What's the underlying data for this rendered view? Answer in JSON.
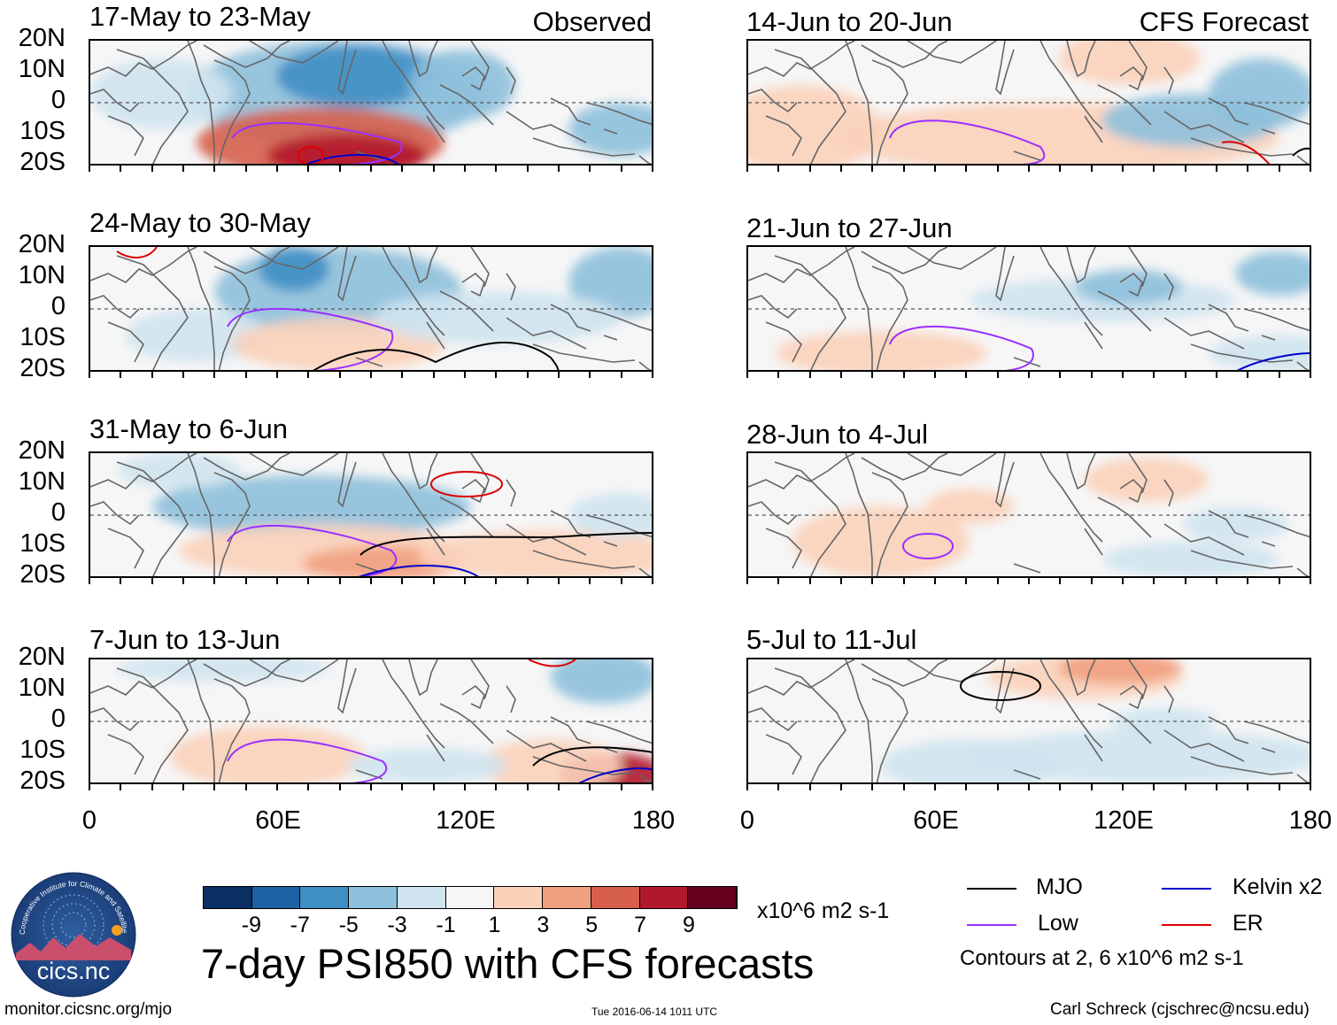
{
  "panels": [
    {
      "id": "p1",
      "title": "17-May to 23-May",
      "label": "Observed"
    },
    {
      "id": "p2",
      "title": "24-May to 30-May",
      "label": ""
    },
    {
      "id": "p3",
      "title": "31-May to 6-Jun",
      "label": ""
    },
    {
      "id": "p4",
      "title": "7-Jun to 13-Jun",
      "label": ""
    },
    {
      "id": "p5",
      "title": "14-Jun to 20-Jun",
      "label": "CFS Forecast"
    },
    {
      "id": "p6",
      "title": "21-Jun to 27-Jun",
      "label": ""
    },
    {
      "id": "p7",
      "title": "28-Jun to 4-Jul",
      "label": ""
    },
    {
      "id": "p8",
      "title": "5-Jul to 11-Jul",
      "label": ""
    }
  ],
  "lat_labels": [
    "20N",
    "10N",
    "0",
    "10S",
    "20S"
  ],
  "lon_labels": [
    "0",
    "60E",
    "120E",
    "180"
  ],
  "colorbar": {
    "ticks": [
      "-9",
      "-7",
      "-5",
      "-3",
      "-1",
      "1",
      "3",
      "5",
      "7",
      "9"
    ],
    "colors": [
      "#0b2f63",
      "#1e63a6",
      "#3f8fc4",
      "#8ec0dc",
      "#cfe4ef",
      "#f6f6f6",
      "#fbd1ba",
      "#f1a07f",
      "#d6604d",
      "#b2182b",
      "#67001f"
    ],
    "units": "x10^6 m2 s-1"
  },
  "title": "7-day PSI850 with CFS forecasts",
  "logo_text": "cics.nc",
  "logo_ring_text": "Cooperative Institute for Climate and Satellites",
  "legend": {
    "items": [
      {
        "label": "MJO",
        "color": "#000000"
      },
      {
        "label": "Kelvin x2",
        "color": "#0000cc"
      },
      {
        "label": "Low",
        "color": "#9b30ff"
      },
      {
        "label": "ER",
        "color": "#dd0000"
      }
    ],
    "note": "Contours at 2, 6 x10^6 m2 s-1"
  },
  "footer": {
    "left": "monitor.cicsnc.org/mjo",
    "center": "Tue 2016-06-14 1011 UTC",
    "right": "Carl Schreck (cjschrec@ncsu.edu)"
  }
}
